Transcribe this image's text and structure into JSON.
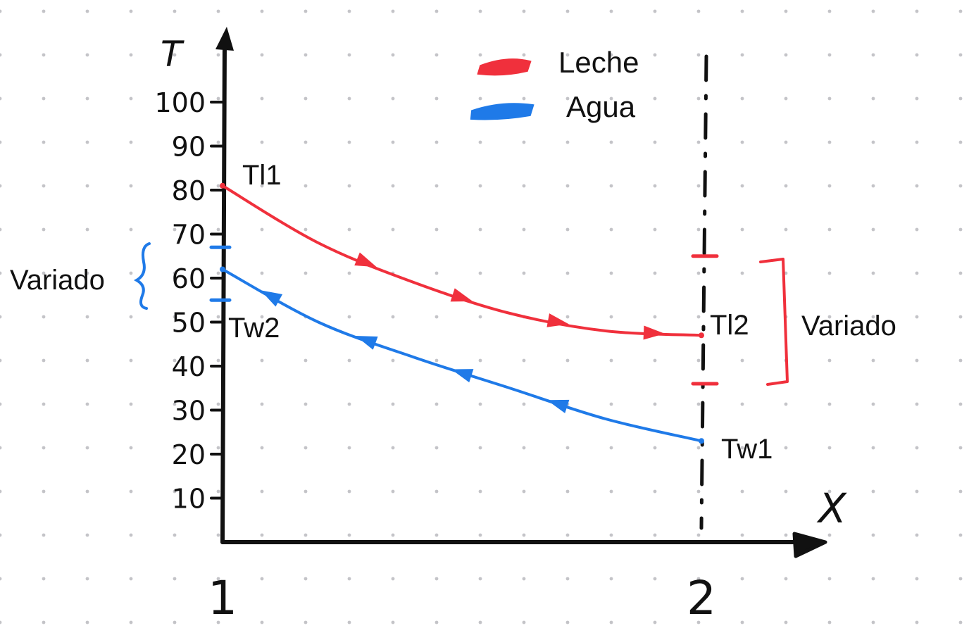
{
  "chart_data": {
    "type": "line",
    "y_ticks": [
      "10",
      "20",
      "30",
      "40",
      "50",
      "60",
      "70",
      "80",
      "90",
      "100"
    ],
    "ylim": [
      0,
      100
    ],
    "x_ticks": [
      "1",
      "2"
    ],
    "xlim": [
      1,
      2
    ],
    "y_axis_symbol": "T",
    "x_axis_symbol": "X",
    "grid": "dotted paper background",
    "legend_position": "top-center",
    "series": [
      {
        "name": "Leche",
        "color": "#f0303c",
        "direction": "forward",
        "start_label": "Tl1",
        "end_label": "Tl2",
        "x": [
          1.0,
          1.2,
          1.4,
          1.6,
          1.8,
          2.0
        ],
        "y": [
          81,
          68,
          59,
          52,
          48,
          47
        ]
      },
      {
        "name": "Agua",
        "color": "#1f7ae8",
        "direction": "backward",
        "start_label": "Tw2",
        "end_label": "Tw1",
        "x": [
          1.0,
          1.2,
          1.4,
          1.6,
          1.8,
          2.0
        ],
        "y": [
          62,
          50,
          42,
          35,
          28,
          23
        ]
      }
    ],
    "annotations": [
      {
        "text": "Variado",
        "color": "#1f7ae8",
        "range": [
          55,
          67
        ]
      },
      {
        "text": "Variado",
        "color": "#f0303c",
        "range": [
          36,
          65
        ]
      }
    ]
  }
}
